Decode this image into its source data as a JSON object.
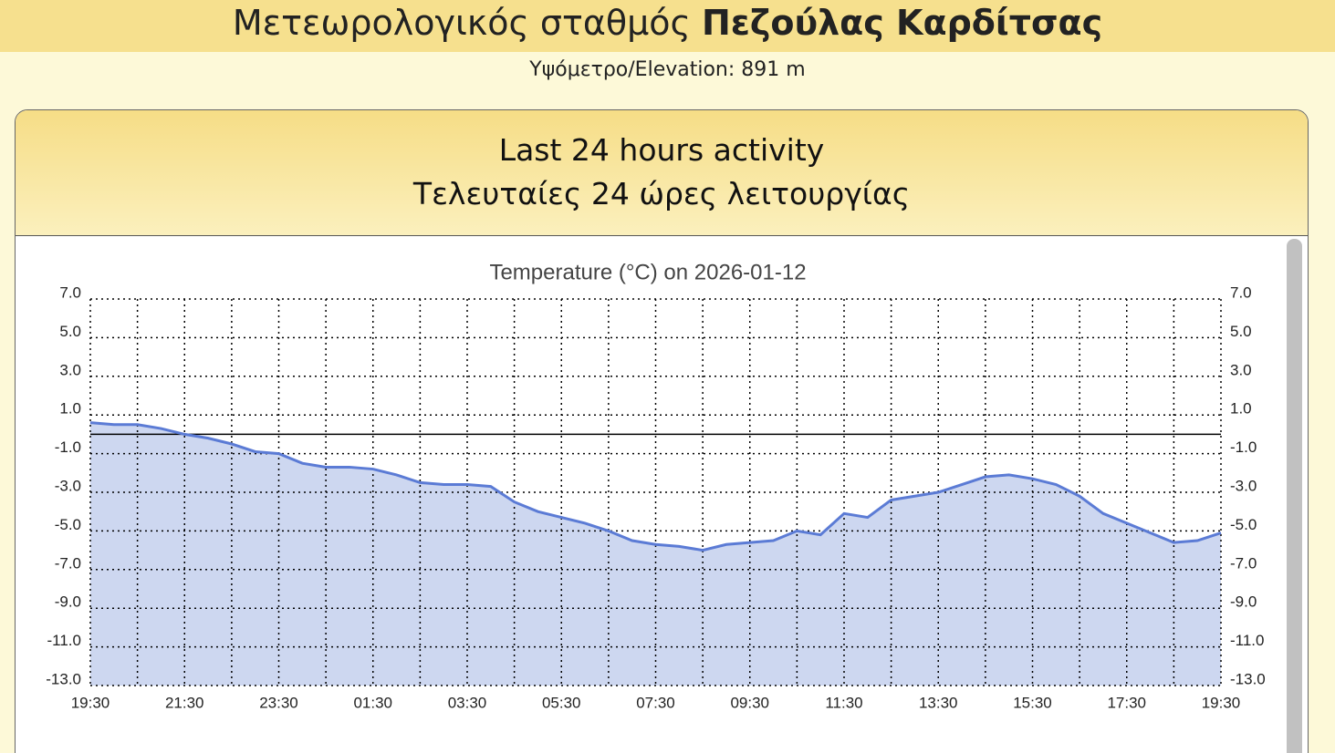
{
  "header": {
    "title_prefix": "Μετεωρολογικός σταθμός",
    "title_name": "Πεζούλας Καρδίτσας",
    "elevation": "Υψόμετρο/Elevation: 891 m"
  },
  "panel": {
    "title_en": "Last 24 hours activity",
    "title_el": "Τελευταίες 24 ώρες λειτουργίας"
  },
  "chart_data": {
    "type": "area",
    "title": "Temperature (°C) on 2026-01-12",
    "categories": [
      "19:30",
      null,
      null,
      null,
      "21:30",
      null,
      null,
      null,
      "23:30",
      null,
      null,
      null,
      "01:30",
      null,
      null,
      null,
      "03:30",
      null,
      null,
      null,
      "05:30",
      null,
      null,
      null,
      "07:30",
      null,
      null,
      null,
      "09:30",
      null,
      null,
      null,
      "11:30",
      null,
      null,
      null,
      "13:30",
      null,
      null,
      null,
      "15:30",
      null,
      null,
      null,
      "17:30",
      null,
      null,
      null,
      "19:30"
    ],
    "values": [
      0.6,
      0.5,
      0.5,
      0.3,
      0.0,
      -0.2,
      -0.5,
      -0.9,
      -1.0,
      -1.5,
      -1.7,
      -1.7,
      -1.8,
      -2.1,
      -2.5,
      -2.6,
      -2.6,
      -2.7,
      -3.5,
      -4.0,
      -4.3,
      -4.6,
      -5.0,
      -5.5,
      -5.7,
      -5.8,
      -6.0,
      -5.7,
      -5.6,
      -5.5,
      -5.0,
      -5.2,
      -4.1,
      -4.3,
      -3.4,
      -3.2,
      -3.0,
      -2.6,
      -2.2,
      -2.1,
      -2.3,
      -2.6,
      -3.2,
      -4.1,
      -4.6,
      -5.1,
      -5.6,
      -5.5,
      -5.1
    ],
    "color": "#5b7bd5",
    "fill_color": "#cdd7f0",
    "ylim": [
      -13,
      7
    ],
    "yticks": [
      {
        "value": 7,
        "label": "7.0"
      },
      {
        "value": 5,
        "label": "5.0"
      },
      {
        "value": 3,
        "label": "3.0"
      },
      {
        "value": 1,
        "label": "1.0"
      },
      {
        "value": -1,
        "label": "-1.0"
      },
      {
        "value": -3,
        "label": "-3.0"
      },
      {
        "value": -5,
        "label": "-5.0"
      },
      {
        "value": -7,
        "label": "-7.0"
      },
      {
        "value": -9,
        "label": "-9.0"
      },
      {
        "value": -11,
        "label": "-11.0"
      },
      {
        "value": -13,
        "label": "-13.0"
      }
    ],
    "grid": true
  }
}
